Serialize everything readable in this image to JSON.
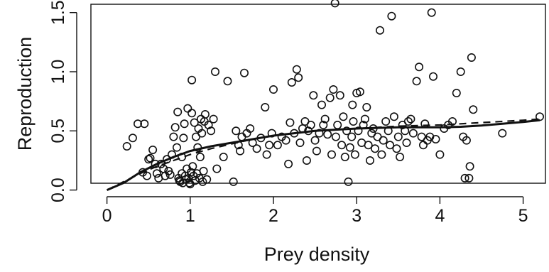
{
  "chart_data": {
    "type": "scatter",
    "title": "",
    "xlabel": "Prey density",
    "ylabel": "Reproduction",
    "xlim": [
      -0.2,
      5.3
    ],
    "ylim": [
      -0.07,
      1.62
    ],
    "xticks": [
      0,
      1,
      2,
      3,
      4,
      5
    ],
    "xtick_labels": [
      "0",
      "1",
      "2",
      "3",
      "4",
      "5"
    ],
    "yticks": [
      0.0,
      0.5,
      1.0,
      1.5
    ],
    "ytick_labels": [
      "0.0",
      "0.5",
      "1.0",
      "1.5"
    ],
    "grid": false,
    "legend": "none",
    "points": [
      [
        0.24,
        0.37
      ],
      [
        0.31,
        0.44
      ],
      [
        0.37,
        0.56
      ],
      [
        0.45,
        0.56
      ],
      [
        0.43,
        0.15
      ],
      [
        0.48,
        0.12
      ],
      [
        0.5,
        0.26
      ],
      [
        0.52,
        0.27
      ],
      [
        0.55,
        0.34
      ],
      [
        0.58,
        0.22
      ],
      [
        0.6,
        0.14
      ],
      [
        0.62,
        0.1
      ],
      [
        0.65,
        0.22
      ],
      [
        0.68,
        0.18
      ],
      [
        0.7,
        0.12
      ],
      [
        0.72,
        0.26
      ],
      [
        0.74,
        0.16
      ],
      [
        0.76,
        0.13
      ],
      [
        0.78,
        0.3
      ],
      [
        0.8,
        0.45
      ],
      [
        0.82,
        0.53
      ],
      [
        0.84,
        0.36
      ],
      [
        0.85,
        0.66
      ],
      [
        0.86,
        0.1
      ],
      [
        0.87,
        0.08
      ],
      [
        0.88,
        0.07
      ],
      [
        0.9,
        0.14
      ],
      [
        0.9,
        0.28
      ],
      [
        0.91,
        0.06
      ],
      [
        0.92,
        0.44
      ],
      [
        0.93,
        0.56
      ],
      [
        0.94,
        0.12
      ],
      [
        0.95,
        0.09
      ],
      [
        0.96,
        0.18
      ],
      [
        0.97,
        0.69
      ],
      [
        0.98,
        0.1
      ],
      [
        0.99,
        0.06
      ],
      [
        1.0,
        0.05
      ],
      [
        1.01,
        0.15
      ],
      [
        1.02,
        0.65
      ],
      [
        1.02,
        0.93
      ],
      [
        1.03,
        0.2
      ],
      [
        1.04,
        0.12
      ],
      [
        1.05,
        0.57
      ],
      [
        1.06,
        0.08
      ],
      [
        1.07,
        0.45
      ],
      [
        1.08,
        0.14
      ],
      [
        1.09,
        0.36
      ],
      [
        1.1,
        0.52
      ],
      [
        1.11,
        0.1
      ],
      [
        1.12,
        0.28
      ],
      [
        1.13,
        0.6
      ],
      [
        1.14,
        0.48
      ],
      [
        1.15,
        0.07
      ],
      [
        1.16,
        0.16
      ],
      [
        1.17,
        0.58
      ],
      [
        1.18,
        0.64
      ],
      [
        1.2,
        0.09
      ],
      [
        1.22,
        0.55
      ],
      [
        1.25,
        0.5
      ],
      [
        1.28,
        0.6
      ],
      [
        1.3,
        1.0
      ],
      [
        1.32,
        0.18
      ],
      [
        1.4,
        0.28
      ],
      [
        1.45,
        0.92
      ],
      [
        1.52,
        0.07
      ],
      [
        1.55,
        0.5
      ],
      [
        1.58,
        0.38
      ],
      [
        1.6,
        0.33
      ],
      [
        1.62,
        0.45
      ],
      [
        1.65,
        0.99
      ],
      [
        1.68,
        0.48
      ],
      [
        1.72,
        0.52
      ],
      [
        1.75,
        0.4
      ],
      [
        1.8,
        0.35
      ],
      [
        1.85,
        0.44
      ],
      [
        1.9,
        0.7
      ],
      [
        1.92,
        0.3
      ],
      [
        1.95,
        0.38
      ],
      [
        1.98,
        0.48
      ],
      [
        2.0,
        0.85
      ],
      [
        2.05,
        0.38
      ],
      [
        2.1,
        0.45
      ],
      [
        2.15,
        0.42
      ],
      [
        2.18,
        0.22
      ],
      [
        2.2,
        0.57
      ],
      [
        2.22,
        0.91
      ],
      [
        2.25,
        0.48
      ],
      [
        2.28,
        1.02
      ],
      [
        2.3,
        0.95
      ],
      [
        2.32,
        0.4
      ],
      [
        2.35,
        0.52
      ],
      [
        2.38,
        0.58
      ],
      [
        2.4,
        0.25
      ],
      [
        2.42,
        0.5
      ],
      [
        2.45,
        0.55
      ],
      [
        2.48,
        0.8
      ],
      [
        2.5,
        0.42
      ],
      [
        2.52,
        0.33
      ],
      [
        2.55,
        0.48
      ],
      [
        2.58,
        0.72
      ],
      [
        2.6,
        0.55
      ],
      [
        2.62,
        0.6
      ],
      [
        2.65,
        0.47
      ],
      [
        2.68,
        0.78
      ],
      [
        2.7,
        0.3
      ],
      [
        2.72,
        0.85
      ],
      [
        2.74,
        1.58
      ],
      [
        2.75,
        0.45
      ],
      [
        2.77,
        0.55
      ],
      [
        2.8,
        0.8
      ],
      [
        2.82,
        0.38
      ],
      [
        2.84,
        0.62
      ],
      [
        2.86,
        0.28
      ],
      [
        2.88,
        0.5
      ],
      [
        2.9,
        0.07
      ],
      [
        2.92,
        0.36
      ],
      [
        2.94,
        0.45
      ],
      [
        2.95,
        0.72
      ],
      [
        2.96,
        0.58
      ],
      [
        2.98,
        0.3
      ],
      [
        3.0,
        0.82
      ],
      [
        3.02,
        0.5
      ],
      [
        3.04,
        0.83
      ],
      [
        3.06,
        0.4
      ],
      [
        3.08,
        0.55
      ],
      [
        3.1,
        0.6
      ],
      [
        3.12,
        0.7
      ],
      [
        3.14,
        0.38
      ],
      [
        3.16,
        0.25
      ],
      [
        3.18,
        0.48
      ],
      [
        3.2,
        0.52
      ],
      [
        3.22,
        0.35
      ],
      [
        3.25,
        0.45
      ],
      [
        3.28,
        1.35
      ],
      [
        3.3,
        0.3
      ],
      [
        3.32,
        0.42
      ],
      [
        3.35,
        0.58
      ],
      [
        3.38,
        0.5
      ],
      [
        3.4,
        0.38
      ],
      [
        3.42,
        1.47
      ],
      [
        3.45,
        0.62
      ],
      [
        3.48,
        0.35
      ],
      [
        3.5,
        0.45
      ],
      [
        3.52,
        0.28
      ],
      [
        3.55,
        0.55
      ],
      [
        3.58,
        0.5
      ],
      [
        3.6,
        0.4
      ],
      [
        3.62,
        0.58
      ],
      [
        3.65,
        0.6
      ],
      [
        3.68,
        0.48
      ],
      [
        3.72,
        0.92
      ],
      [
        3.75,
        1.04
      ],
      [
        3.78,
        0.45
      ],
      [
        3.8,
        0.38
      ],
      [
        3.82,
        0.56
      ],
      [
        3.85,
        0.42
      ],
      [
        3.88,
        0.45
      ],
      [
        3.9,
        1.5
      ],
      [
        3.92,
        0.96
      ],
      [
        3.95,
        0.43
      ],
      [
        4.0,
        0.3
      ],
      [
        4.05,
        0.52
      ],
      [
        4.1,
        0.55
      ],
      [
        4.15,
        0.58
      ],
      [
        4.2,
        0.82
      ],
      [
        4.25,
        1.0
      ],
      [
        4.28,
        0.45
      ],
      [
        4.3,
        0.1
      ],
      [
        4.32,
        0.42
      ],
      [
        4.35,
        0.1
      ],
      [
        4.36,
        0.2
      ],
      [
        4.38,
        1.12
      ],
      [
        4.4,
        0.68
      ],
      [
        4.75,
        0.48
      ],
      [
        5.2,
        0.62
      ]
    ],
    "fits": [
      {
        "style": "solid",
        "points": [
          [
            0.0,
            0.0
          ],
          [
            0.2,
            0.06
          ],
          [
            0.4,
            0.15
          ],
          [
            0.6,
            0.22
          ],
          [
            0.8,
            0.28
          ],
          [
            1.0,
            0.33
          ],
          [
            1.25,
            0.37
          ],
          [
            1.5,
            0.4
          ],
          [
            1.75,
            0.43
          ],
          [
            2.0,
            0.46
          ],
          [
            2.25,
            0.48
          ],
          [
            2.5,
            0.5
          ],
          [
            2.75,
            0.51
          ],
          [
            3.0,
            0.52
          ],
          [
            3.25,
            0.525
          ],
          [
            3.5,
            0.53
          ],
          [
            3.75,
            0.53
          ],
          [
            4.0,
            0.53
          ],
          [
            4.25,
            0.535
          ],
          [
            4.5,
            0.545
          ],
          [
            4.75,
            0.56
          ],
          [
            5.0,
            0.575
          ],
          [
            5.2,
            0.59
          ]
        ]
      },
      {
        "style": "dashed",
        "points": [
          [
            0.0,
            0.0
          ],
          [
            0.2,
            0.07
          ],
          [
            0.4,
            0.14
          ],
          [
            0.6,
            0.2
          ],
          [
            0.8,
            0.25
          ],
          [
            1.0,
            0.3
          ],
          [
            1.25,
            0.35
          ],
          [
            1.5,
            0.39
          ],
          [
            1.75,
            0.43
          ],
          [
            2.0,
            0.46
          ],
          [
            2.25,
            0.48
          ],
          [
            2.5,
            0.5
          ],
          [
            2.75,
            0.51
          ],
          [
            3.0,
            0.52
          ],
          [
            3.25,
            0.53
          ],
          [
            3.5,
            0.54
          ],
          [
            3.75,
            0.545
          ],
          [
            4.0,
            0.55
          ],
          [
            4.25,
            0.56
          ],
          [
            4.5,
            0.57
          ],
          [
            4.75,
            0.58
          ],
          [
            5.0,
            0.59
          ],
          [
            5.2,
            0.6
          ]
        ]
      }
    ]
  }
}
